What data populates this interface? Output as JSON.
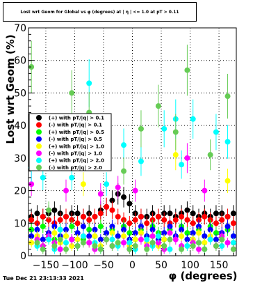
{
  "title": "Lost wrt Geom for Global vs φ (degrees) at | η | <= 1.0 at pT > 0.11",
  "timestamp": "Tue Dec 21 23:13:33 2021",
  "chart_data": {
    "type": "scatter",
    "xlabel": "φ (degrees)",
    "ylabel": "Lost wrt Geom (%)",
    "xlim": [
      -180,
      180
    ],
    "ylim": [
      0,
      70
    ],
    "x_ticks": [
      -150,
      -100,
      -50,
      0,
      50,
      100,
      150
    ],
    "x_tick_labels": [
      "−150",
      "−100",
      "−50",
      "0",
      "50",
      "100",
      "150"
    ],
    "y_ticks": [
      0,
      10,
      20,
      30,
      40,
      50,
      60,
      70
    ],
    "grid": true,
    "legend_position": "left-center",
    "series": [
      {
        "name": "(+) with pT/|q| > 0.1",
        "color": "#000000",
        "x": [
          -175,
          -165,
          -155,
          -145,
          -135,
          -125,
          -115,
          -105,
          -95,
          -85,
          -75,
          -65,
          -55,
          -45,
          -35,
          -25,
          -15,
          -5,
          5,
          15,
          25,
          35,
          45,
          55,
          65,
          75,
          85,
          95,
          105,
          115,
          125,
          135,
          145,
          155,
          165,
          175
        ],
        "y": [
          12,
          13,
          12,
          13,
          14,
          13,
          12,
          13,
          13,
          12,
          13,
          12,
          14,
          15,
          17,
          19,
          18,
          16,
          13,
          12,
          12,
          13,
          12,
          13,
          13,
          12,
          13,
          14,
          13,
          12,
          13,
          12,
          13,
          13,
          12,
          13
        ]
      },
      {
        "name": "(-) with pT/|q| > 0.1",
        "color": "#ff0000",
        "x": [
          -175,
          -165,
          -155,
          -145,
          -135,
          -125,
          -115,
          -105,
          -95,
          -85,
          -75,
          -65,
          -55,
          -45,
          -35,
          -25,
          -15,
          -5,
          5,
          15,
          25,
          35,
          45,
          55,
          65,
          75,
          85,
          95,
          105,
          115,
          125,
          135,
          145,
          155,
          165,
          175
        ],
        "y": [
          11,
          10,
          12,
          11,
          10,
          11,
          12,
          11,
          10,
          12,
          11,
          12,
          13,
          15,
          14,
          12,
          11,
          10,
          11,
          12,
          10,
          11,
          12,
          11,
          10,
          11,
          12,
          11,
          10,
          11,
          12,
          11,
          10,
          11,
          12,
          10
        ]
      },
      {
        "name": "(+) with pT/|q| > 0.5",
        "color": "#00ff00",
        "x": [
          -175,
          -165,
          -155,
          -145,
          -135,
          -125,
          -115,
          -105,
          -95,
          -85,
          -75,
          -65,
          -55,
          -45,
          -35,
          -25,
          -15,
          -5,
          5,
          15,
          25,
          35,
          45,
          55,
          65,
          75,
          85,
          95,
          105,
          115,
          125,
          135,
          145,
          155,
          165,
          175
        ],
        "y": [
          8,
          6,
          9,
          7,
          5,
          8,
          6,
          9,
          7,
          5,
          8,
          6,
          9,
          7,
          8,
          6,
          9,
          7,
          5,
          8,
          6,
          9,
          7,
          5,
          8,
          6,
          9,
          7,
          5,
          8,
          6,
          9,
          7,
          5,
          8,
          6
        ]
      },
      {
        "name": "(-) with pT/|q| > 0.5",
        "color": "#0000ff",
        "x": [
          -175,
          -165,
          -155,
          -145,
          -135,
          -125,
          -115,
          -105,
          -95,
          -85,
          -75,
          -65,
          -55,
          -45,
          -35,
          -25,
          -15,
          -5,
          5,
          15,
          25,
          35,
          45,
          55,
          65,
          75,
          85,
          95,
          105,
          115,
          125,
          135,
          145,
          155,
          165,
          175
        ],
        "y": [
          6,
          8,
          5,
          7,
          9,
          6,
          8,
          5,
          7,
          9,
          6,
          8,
          5,
          7,
          9,
          6,
          8,
          5,
          7,
          9,
          6,
          8,
          5,
          7,
          9,
          6,
          8,
          5,
          7,
          9,
          6,
          8,
          5,
          7,
          9,
          6
        ]
      },
      {
        "name": "(+) with pT/|q| > 1.0",
        "color": "#ffff00",
        "x": [
          -175,
          -165,
          -155,
          -145,
          -135,
          -125,
          -115,
          -105,
          -95,
          -85,
          -75,
          -65,
          -55,
          -45,
          -35,
          -25,
          -15,
          -5,
          5,
          15,
          25,
          35,
          45,
          55,
          65,
          75,
          85,
          95,
          105,
          115,
          125,
          135,
          145,
          155,
          165,
          175
        ],
        "y": [
          4,
          6,
          3,
          5,
          7,
          4,
          6,
          3,
          5,
          22,
          4,
          6,
          3,
          5,
          7,
          4,
          6,
          3,
          5,
          7,
          4,
          6,
          3,
          5,
          7,
          31,
          6,
          3,
          5,
          7,
          4,
          6,
          3,
          5,
          23,
          4
        ]
      },
      {
        "name": "(-) with pT/|q| > 1.0",
        "color": "#ff00ff",
        "x": [
          -175,
          -165,
          -155,
          -145,
          -135,
          -125,
          -115,
          -105,
          -95,
          -85,
          -75,
          -65,
          -55,
          -45,
          -35,
          -25,
          -15,
          -5,
          5,
          15,
          25,
          35,
          45,
          55,
          65,
          75,
          85,
          95,
          105,
          115,
          125,
          135,
          145,
          155,
          165,
          175
        ],
        "y": [
          22,
          5,
          3,
          6,
          4,
          2,
          20,
          5,
          3,
          6,
          4,
          2,
          19,
          5,
          3,
          21,
          4,
          2,
          20,
          5,
          3,
          6,
          4,
          2,
          7,
          5,
          3,
          30,
          4,
          2,
          20,
          5,
          3,
          6,
          4,
          2
        ]
      },
      {
        "name": "(+) with pT/|q| > 2.0",
        "color": "#00ffff",
        "x": [
          -175,
          -165,
          -155,
          -145,
          -135,
          -125,
          -115,
          -105,
          -95,
          -85,
          -75,
          -65,
          -55,
          -45,
          -35,
          -25,
          -15,
          -5,
          5,
          15,
          25,
          35,
          45,
          55,
          65,
          75,
          85,
          95,
          105,
          115,
          125,
          135,
          145,
          155,
          165,
          175
        ],
        "y": [
          27,
          3,
          24,
          5,
          2,
          8,
          4,
          24,
          3,
          6,
          53,
          4,
          2,
          22,
          5,
          3,
          34,
          4,
          2,
          29,
          5,
          3,
          6,
          39,
          2,
          42,
          28,
          3,
          42,
          4,
          2,
          5,
          38,
          3,
          35,
          4
        ]
      },
      {
        "name": "(-) with pT/|q| > 2.0",
        "color": "#66cc55",
        "x": [
          -175,
          -165,
          -155,
          -145,
          -135,
          -125,
          -115,
          -105,
          -95,
          -85,
          -75,
          -65,
          -55,
          -45,
          -35,
          -25,
          -15,
          -5,
          5,
          15,
          25,
          35,
          45,
          55,
          65,
          75,
          85,
          95,
          105,
          115,
          125,
          135,
          145,
          155,
          165,
          175
        ],
        "y": [
          58,
          4,
          2,
          14,
          3,
          5,
          2,
          50,
          3,
          4,
          44,
          3,
          2,
          5,
          3,
          4,
          26,
          2,
          3,
          39,
          2,
          4,
          46,
          3,
          5,
          38,
          2,
          57,
          3,
          4,
          2,
          31,
          3,
          5,
          49,
          2
        ]
      }
    ]
  }
}
